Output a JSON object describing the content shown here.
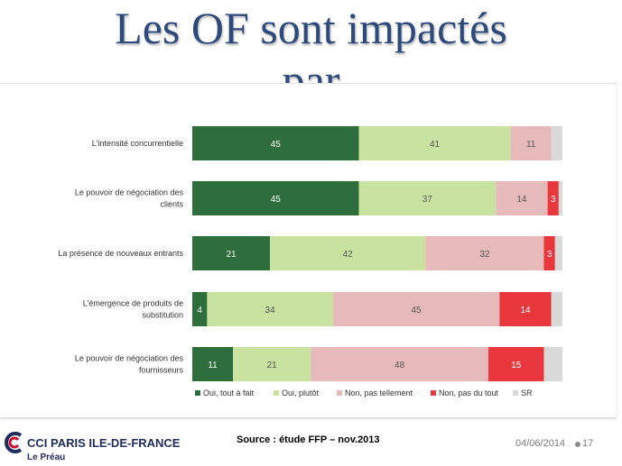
{
  "slide": {
    "title": "Les OF sont impactés par",
    "source": "Source : étude FFP – nov.2013",
    "date": "04/06/2014",
    "page_number": "17",
    "logo": {
      "name": "CCI PARIS ILE-DE-FRANCE",
      "subtitle": "Le Préau"
    }
  },
  "chart_data": {
    "type": "bar",
    "orientation": "horizontal",
    "stacked": true,
    "title": "",
    "xlabel": "",
    "ylabel": "",
    "xlim": [
      0,
      100
    ],
    "categories": [
      "L'intensité concurrentielle",
      "Le pouvoir de négociation des clients",
      "La présence de nouveaux entrants",
      "L'émergence de produits de substitution",
      "Le pouvoir de négociation des fournisseurs"
    ],
    "series": [
      {
        "name": "Oui, tout à fait",
        "color": "#2d6e3c",
        "label_color": "#ffffff",
        "values": [
          45,
          45,
          21,
          4,
          11
        ]
      },
      {
        "name": "Oui, plutôt",
        "color": "#c8e2a0",
        "label_color": "#555555",
        "values": [
          41,
          37,
          42,
          34,
          21
        ]
      },
      {
        "name": "Non, pas tellement",
        "color": "#e6b9bb",
        "label_color": "#555555",
        "values": [
          11,
          14,
          32,
          45,
          48
        ]
      },
      {
        "name": "Non, pas du tout",
        "color": "#e8383e",
        "label_color": "#ffffff",
        "values": [
          0,
          3,
          3,
          14,
          15
        ]
      },
      {
        "name": "SR",
        "color": "#d9d9d9",
        "label_color": "#555555",
        "values": [
          3,
          1,
          2,
          3,
          5
        ]
      }
    ],
    "data_labels": [
      [
        "45",
        "41",
        "11",
        "",
        ""
      ],
      [
        "45",
        "37",
        "14",
        "3",
        ""
      ],
      [
        "21",
        "42",
        "32",
        "3",
        ""
      ],
      [
        "4",
        "34",
        "45",
        "14",
        ""
      ],
      [
        "11",
        "21",
        "48",
        "15",
        ""
      ]
    ],
    "legend_position": "bottom"
  }
}
